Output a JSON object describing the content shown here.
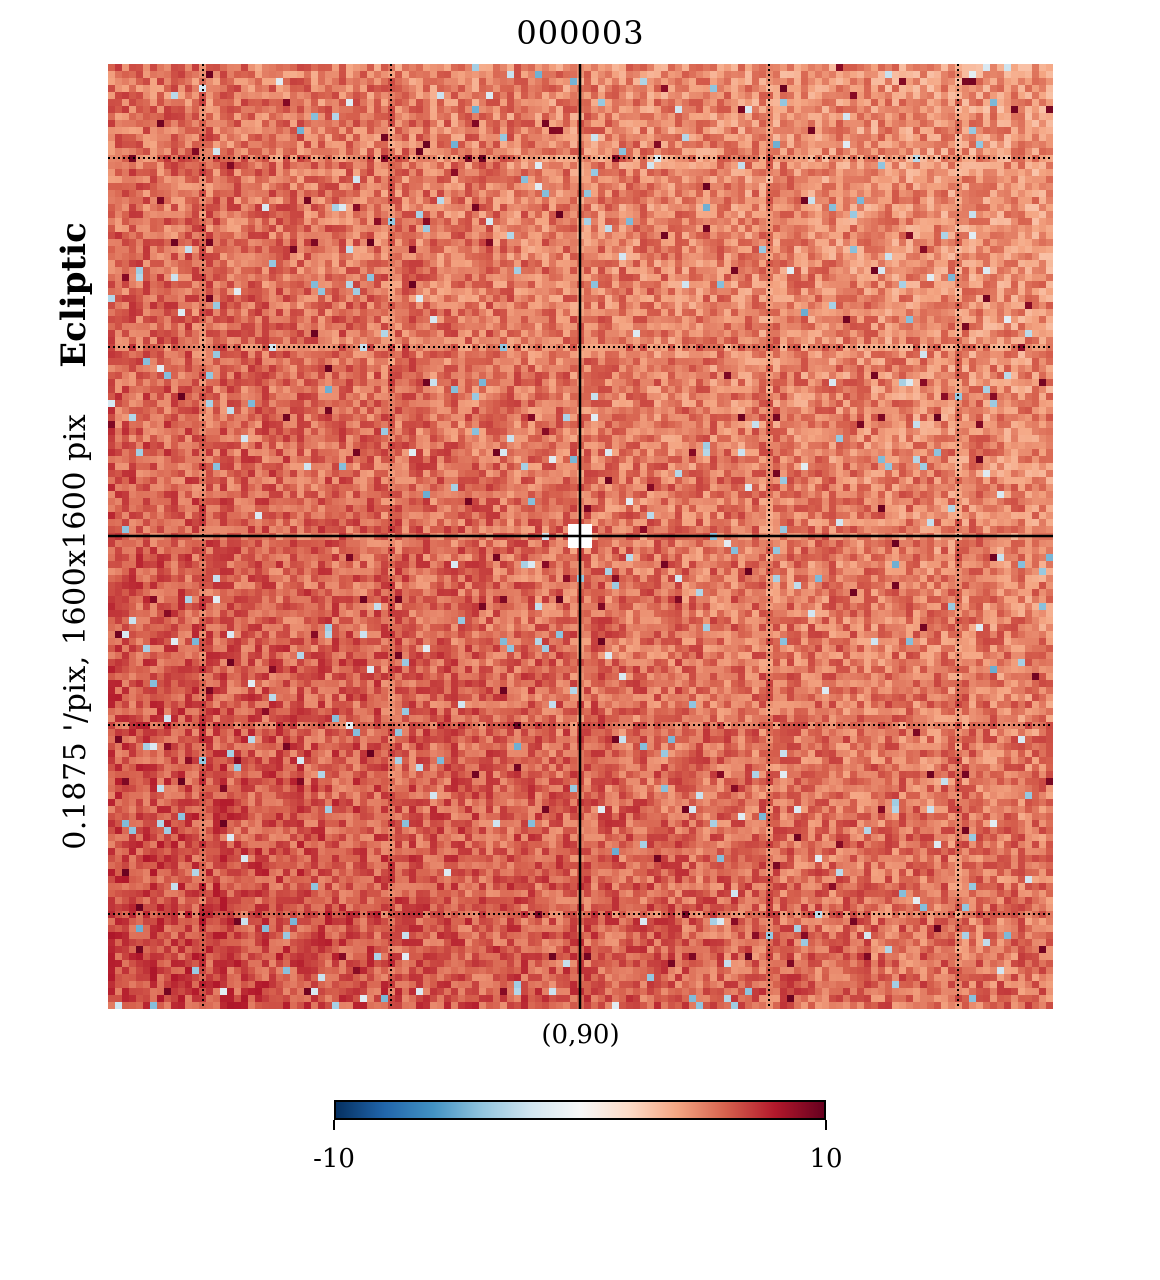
{
  "chart_data": {
    "type": "heatmap",
    "title": "000003",
    "map_center_label": "(0,90)",
    "resolution_text": "0.1875 '/pix,   1600x1600 pix",
    "coordinate_frame": "Ecliptic",
    "colormap": "RdBu_r",
    "colormap_stops": [
      "#053061",
      "#2166ac",
      "#4393c3",
      "#92c5de",
      "#d1e5f0",
      "#f7f7f7",
      "#fddbc7",
      "#f4a582",
      "#d6604d",
      "#b2182b",
      "#67001f"
    ],
    "value_range": [
      -10,
      10
    ],
    "colorbar_ticks": [
      "-10",
      "10"
    ],
    "typical_value": 5.5,
    "grid": "dotted graticule",
    "missing_pixels": "white patch at map center"
  }
}
